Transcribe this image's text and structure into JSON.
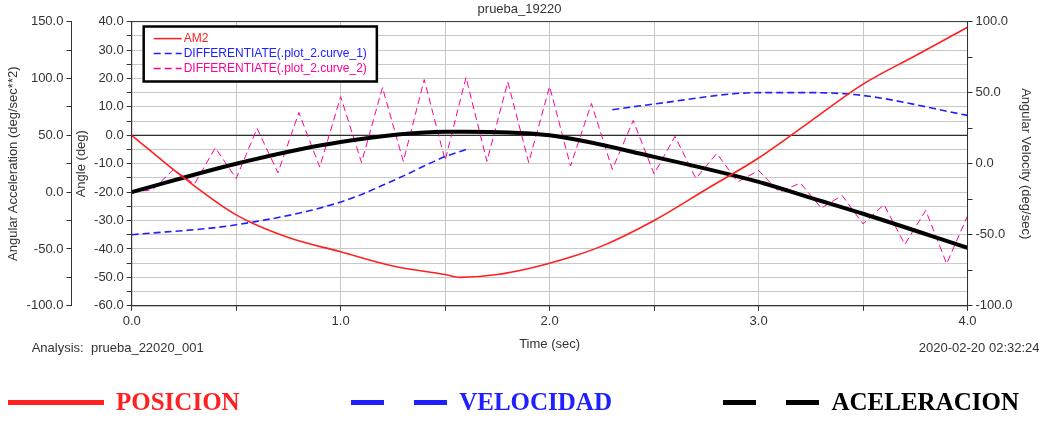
{
  "chart_data": {
    "type": "line",
    "title": "prueba_19220",
    "xlabel": "Time (sec)",
    "ylabel": "Angle (deg)",
    "y2label": "Angular Velocity (deg/sec)",
    "y3label": "Angular Acceleration (deg/sec**2)",
    "annotations": [
      "Analysis:  prueba_22020_001",
      "2020-02-20 02:32:24",
      "POSICION",
      "VELOCIDAD",
      "ACELERACION"
    ],
    "xlim": [
      0,
      4
    ],
    "xticks": [
      {
        "value": 0,
        "label": "0.0"
      },
      {
        "value": 0.5,
        "label": null
      },
      {
        "value": 1,
        "label": "1.0"
      },
      {
        "value": 1.5,
        "label": null
      },
      {
        "value": 2,
        "label": "2.0"
      },
      {
        "value": 2.5,
        "label": null
      },
      {
        "value": 3,
        "label": "3.0"
      },
      {
        "value": 3.5,
        "label": null
      },
      {
        "value": 4,
        "label": "4.0"
      }
    ],
    "ylim": [
      -60,
      40
    ],
    "yticks": [
      {
        "value": -60,
        "label": "-60.0"
      },
      {
        "value": -55,
        "label": null
      },
      {
        "value": -50,
        "label": "-50.0"
      },
      {
        "value": -45,
        "label": null
      },
      {
        "value": -40,
        "label": "-40.0"
      },
      {
        "value": -35,
        "label": null
      },
      {
        "value": -30,
        "label": "-30.0"
      },
      {
        "value": -25,
        "label": null
      },
      {
        "value": -20,
        "label": "-20.0"
      },
      {
        "value": -15,
        "label": null
      },
      {
        "value": -10,
        "label": "-10.0"
      },
      {
        "value": -5,
        "label": null
      },
      {
        "value": 0,
        "label": "0.0"
      },
      {
        "value": 5,
        "label": null
      },
      {
        "value": 10,
        "label": "10.0"
      },
      {
        "value": 15,
        "label": null
      },
      {
        "value": 20,
        "label": "20.0"
      },
      {
        "value": 25,
        "label": null
      },
      {
        "value": 30,
        "label": "30.0"
      },
      {
        "value": 35,
        "label": null
      },
      {
        "value": 40,
        "label": "40.0"
      }
    ],
    "y2lim": [
      -100,
      100
    ],
    "y2ticks": [
      {
        "value": -100,
        "label": "-100.0"
      },
      {
        "value": -75,
        "label": null
      },
      {
        "value": -50,
        "label": "-50.0"
      },
      {
        "value": -25,
        "label": null
      },
      {
        "value": 0,
        "label": "0.0"
      },
      {
        "value": 25,
        "label": null
      },
      {
        "value": 50,
        "label": "50.0"
      },
      {
        "value": 75,
        "label": null
      },
      {
        "value": 100,
        "label": "100.0"
      }
    ],
    "y3lim": [
      -100,
      150
    ],
    "y3ticks": [
      {
        "value": -100,
        "label": "-100.0"
      },
      {
        "value": -75,
        "label": null
      },
      {
        "value": -50,
        "label": "-50.0"
      },
      {
        "value": -25,
        "label": null
      },
      {
        "value": 0,
        "label": "0.0"
      },
      {
        "value": 25,
        "label": null
      },
      {
        "value": 50,
        "label": "50.0"
      },
      {
        "value": 75,
        "label": null
      },
      {
        "value": 100,
        "label": "100.0"
      },
      {
        "value": 125,
        "label": null
      },
      {
        "value": 150,
        "label": "150.0"
      }
    ],
    "ref_lines": [
      {
        "axis": "y",
        "value": 0,
        "color": "#000000"
      }
    ],
    "grid": true,
    "legend": "top left",
    "marker": "none",
    "series": [
      {
        "name": "AM2",
        "color": "#ff2020",
        "line_style": "solid",
        "x": [
          0,
          0.25,
          0.5,
          0.75,
          1,
          1.25,
          1.5,
          1.57,
          1.75,
          2,
          2.25,
          2.5,
          2.75,
          3,
          3.25,
          3.5,
          3.75,
          4
        ],
        "values": [
          0,
          -15,
          -28,
          -36,
          -41,
          -46,
          -49,
          -50,
          -49,
          -45,
          -39,
          -30,
          -19,
          -8,
          5,
          18,
          28,
          38
        ]
      },
      {
        "name": "DIFFERENTIATE(.plot_2.curve_1)",
        "color": "#2020ff",
        "axis": "y2",
        "line_style": "dashed",
        "x": [
          0,
          0.5,
          1,
          1.25,
          1.5,
          1.6,
          1.75,
          2,
          2.25,
          2.3,
          2.5,
          3,
          3.25,
          3.5,
          4
        ],
        "values": [
          -50,
          -43,
          -27,
          -12,
          5,
          10,
          null,
          null,
          null,
          38,
          42,
          50,
          50,
          48,
          34
        ]
      },
      {
        "color": "#000000",
        "axis": "y3",
        "line_style": "solid",
        "x": [
          0,
          0.5,
          1,
          1.5,
          1.6,
          2,
          2.5,
          3,
          3.25,
          3.5,
          4
        ],
        "values": [
          0,
          25,
          44,
          53,
          53,
          50,
          31,
          9,
          -5,
          -19,
          -49
        ]
      },
      {
        "name": "DIFFERENTIATE(.plot_2.curve_2)",
        "color": "#ff0099",
        "axis": "y3",
        "line_style": "dashed",
        "x": [
          0,
          0.1,
          0.2,
          0.3,
          0.4,
          0.5,
          0.6,
          0.7,
          0.8,
          0.9,
          1,
          1.1,
          1.2,
          1.3,
          1.4,
          1.5,
          1.6,
          1.7,
          1.8,
          1.9,
          2,
          2.1,
          2.2,
          2.3,
          2.4,
          2.5,
          2.6,
          2.7,
          2.8,
          2.9,
          3,
          3.1,
          3.2,
          3.3,
          3.4,
          3.5,
          3.6,
          3.7,
          3.8,
          3.9,
          4
        ],
        "values": [
          0,
          2,
          20,
          7,
          39,
          12,
          56,
          17,
          70,
          22,
          84,
          26,
          92,
          27,
          99,
          28,
          101,
          27,
          97,
          26,
          93,
          23,
          78,
          20,
          63,
          16,
          49,
          12,
          34,
          9,
          19,
          0,
          8,
          -14,
          -3,
          -28,
          -11,
          -46,
          -16,
          -63,
          -21
        ]
      }
    ]
  }
}
